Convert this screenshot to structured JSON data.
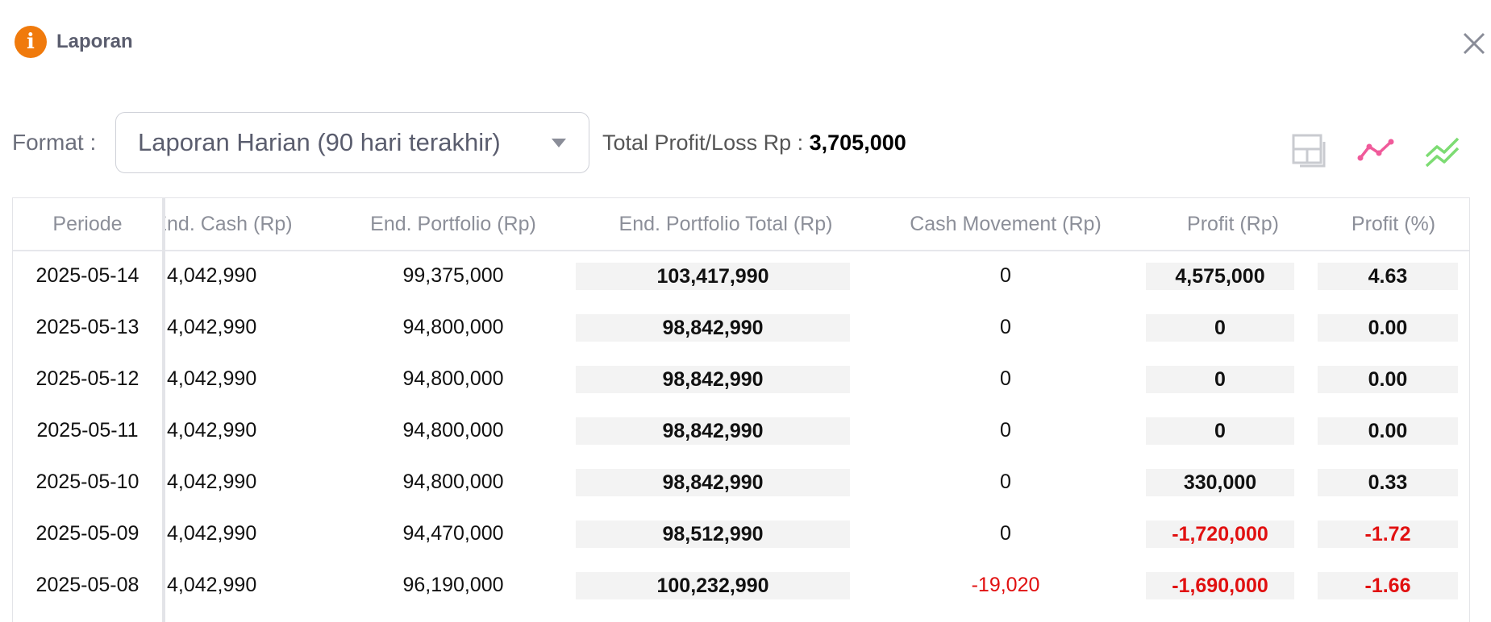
{
  "dialog": {
    "title": "Laporan",
    "icon": "info-icon"
  },
  "toolbar": {
    "format_label": "Format :",
    "format_value": "Laporan Harian (90 hari terakhir)",
    "total_label": "Total Profit/Loss Rp :",
    "total_value": "3,705,000"
  },
  "colors": {
    "accent": "#f07a0c",
    "negative": "#e11010",
    "chart_pink": "#f05a9a",
    "chart_green": "#7ddc73"
  },
  "table": {
    "headers": [
      "Periode",
      "End. Cash (Rp)",
      "End. Portfolio (Rp)",
      "End. Portfolio Total (Rp)",
      "Cash Movement (Rp)",
      "Profit (Rp)",
      "Profit (%)"
    ],
    "rows": [
      {
        "periode": "2025-05-14",
        "cash": "4,042,990",
        "portfolio": "99,375,000",
        "total": "103,417,990",
        "movement": "0",
        "profit": "4,575,000",
        "pct": "4.63",
        "neg": false,
        "mneg": false
      },
      {
        "periode": "2025-05-13",
        "cash": "4,042,990",
        "portfolio": "94,800,000",
        "total": "98,842,990",
        "movement": "0",
        "profit": "0",
        "pct": "0.00",
        "neg": false,
        "mneg": false
      },
      {
        "periode": "2025-05-12",
        "cash": "4,042,990",
        "portfolio": "94,800,000",
        "total": "98,842,990",
        "movement": "0",
        "profit": "0",
        "pct": "0.00",
        "neg": false,
        "mneg": false
      },
      {
        "periode": "2025-05-11",
        "cash": "4,042,990",
        "portfolio": "94,800,000",
        "total": "98,842,990",
        "movement": "0",
        "profit": "0",
        "pct": "0.00",
        "neg": false,
        "mneg": false
      },
      {
        "periode": "2025-05-10",
        "cash": "4,042,990",
        "portfolio": "94,800,000",
        "total": "98,842,990",
        "movement": "0",
        "profit": "330,000",
        "pct": "0.33",
        "neg": false,
        "mneg": false
      },
      {
        "periode": "2025-05-09",
        "cash": "4,042,990",
        "portfolio": "94,470,000",
        "total": "98,512,990",
        "movement": "0",
        "profit": "-1,720,000",
        "pct": "-1.72",
        "neg": true,
        "mneg": false
      },
      {
        "periode": "2025-05-08",
        "cash": "4,042,990",
        "portfolio": "96,190,000",
        "total": "100,232,990",
        "movement": "-19,020",
        "profit": "-1,690,000",
        "pct": "-1.66",
        "neg": true,
        "mneg": true
      }
    ]
  }
}
